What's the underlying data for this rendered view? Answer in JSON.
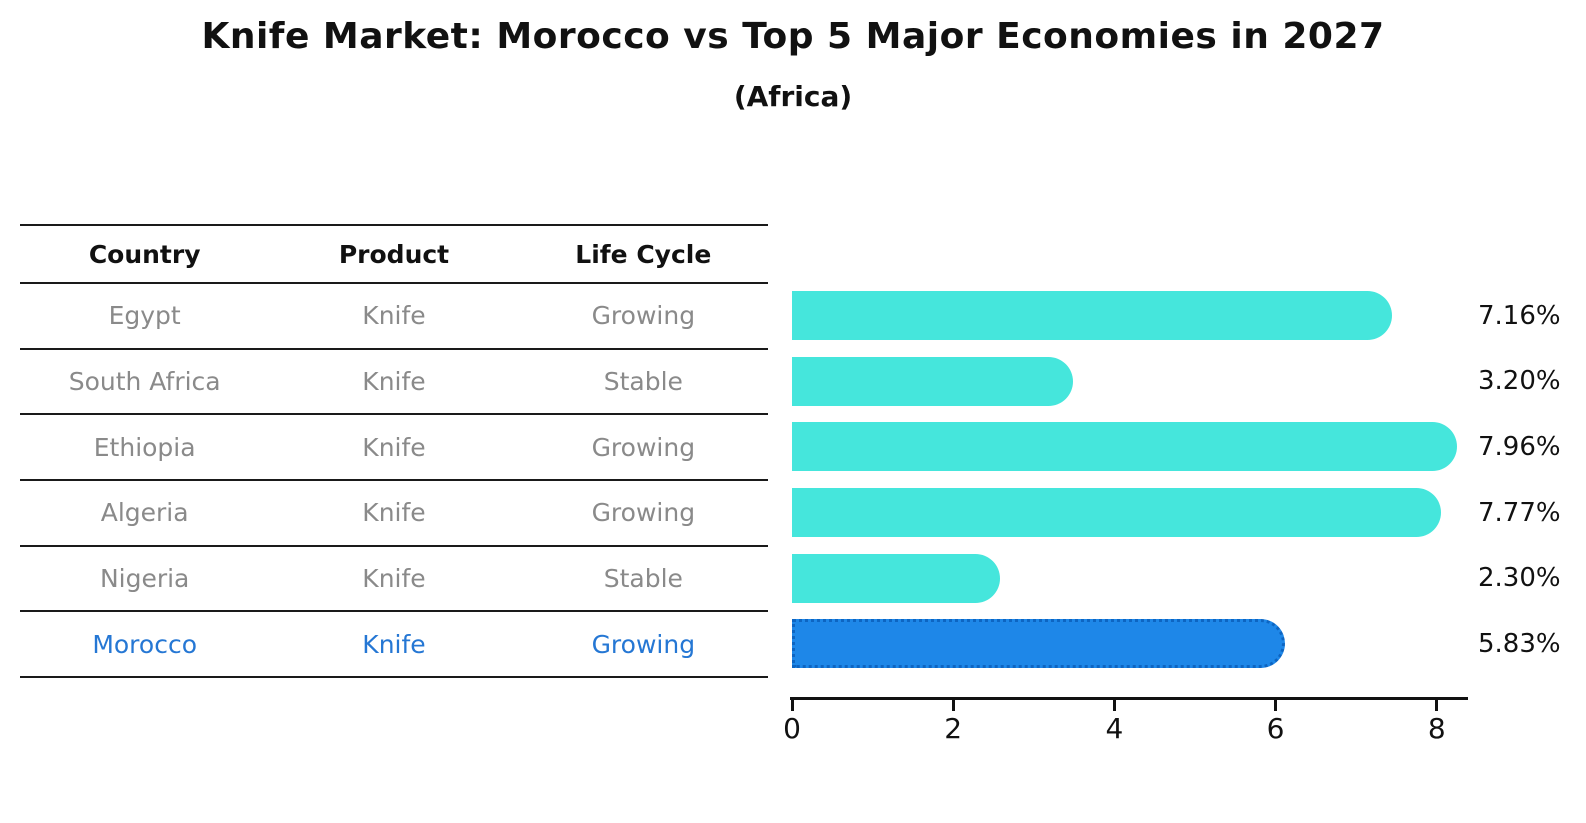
{
  "header": {
    "title": "Knife Market: Morocco vs Top 5 Major Economies in 2027",
    "subtitle": "(Africa)"
  },
  "table": {
    "columns": {
      "country": "Country",
      "product": "Product",
      "life_cycle": "Life Cycle"
    },
    "rows": [
      {
        "country": "Egypt",
        "product": "Knife",
        "life_cycle": "Growing"
      },
      {
        "country": "South Africa",
        "product": "Knife",
        "life_cycle": "Stable"
      },
      {
        "country": "Ethiopia",
        "product": "Knife",
        "life_cycle": "Growing"
      },
      {
        "country": "Algeria",
        "product": "Knife",
        "life_cycle": "Growing"
      },
      {
        "country": "Nigeria",
        "product": "Knife",
        "life_cycle": "Stable"
      },
      {
        "country": "Morocco",
        "product": "Knife",
        "life_cycle": "Growing"
      }
    ]
  },
  "chart_data": {
    "type": "bar",
    "orientation": "horizontal",
    "title": "Knife Market: Morocco vs Top 5 Major Economies in 2027",
    "subtitle": "(Africa)",
    "categories": [
      "Egypt",
      "South Africa",
      "Ethiopia",
      "Algeria",
      "Nigeria",
      "Morocco"
    ],
    "values": [
      7.16,
      3.2,
      7.96,
      7.77,
      2.3,
      5.83
    ],
    "value_labels": [
      "7.16%",
      "3.20%",
      "7.96%",
      "7.77%",
      "2.30%",
      "5.83%"
    ],
    "unit": "%",
    "xticks": [
      "0",
      "2",
      "4",
      "6",
      "8"
    ],
    "xtick_values": [
      0,
      2,
      4,
      6,
      8
    ],
    "xlim": [
      0,
      8.4
    ],
    "grid": false,
    "legend": false,
    "highlight_index": 5,
    "colors": {
      "bar": "#45e6dc",
      "highlight_bar": "#1e87e8",
      "highlight_text": "#2577d4",
      "row_text": "#8a8a8a",
      "text": "#111111"
    }
  }
}
